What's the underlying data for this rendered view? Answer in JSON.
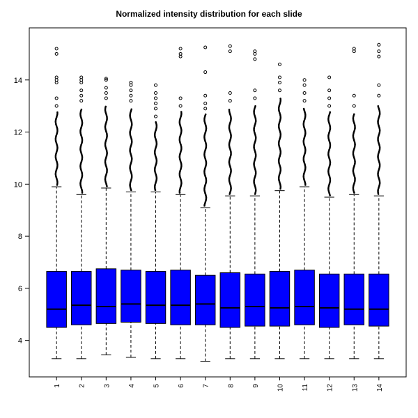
{
  "chart_data": {
    "type": "boxplot",
    "title": "Normalized intensity distribution for each slide",
    "categories": [
      "1",
      "2",
      "3",
      "4",
      "5",
      "6",
      "7",
      "8",
      "9",
      "10",
      "11",
      "12",
      "13",
      "14"
    ],
    "xlabel": "",
    "ylabel": "",
    "ylim": [
      2.6,
      16.0
    ],
    "y_ticks": [
      4,
      6,
      8,
      10,
      12,
      14
    ],
    "grid": false,
    "legend": "none",
    "box_color": "#0000FF",
    "fg": "#000000",
    "background": "#FFFFFF",
    "series": [
      {
        "slide": "1",
        "whisker_low": 3.3,
        "q1": 4.5,
        "median": 5.2,
        "q3": 6.65,
        "whisker_high": 9.9,
        "outliers_dense_to": 12.8,
        "outliers_sparse": [
          13.0,
          13.3,
          13.9,
          14.0,
          14.1,
          15.0,
          15.2
        ]
      },
      {
        "slide": "2",
        "whisker_low": 3.3,
        "q1": 4.6,
        "median": 5.35,
        "q3": 6.65,
        "whisker_high": 9.6,
        "outliers_dense_to": 12.9,
        "outliers_sparse": [
          13.2,
          13.4,
          13.6,
          13.9,
          14.0,
          14.1
        ]
      },
      {
        "slide": "3",
        "whisker_low": 3.45,
        "q1": 4.65,
        "median": 5.3,
        "q3": 6.75,
        "whisker_high": 9.85,
        "outliers_dense_to": 13.0,
        "outliers_sparse": [
          13.3,
          13.5,
          13.7,
          14.0,
          14.05
        ]
      },
      {
        "slide": "4",
        "whisker_low": 3.35,
        "q1": 4.7,
        "median": 5.4,
        "q3": 6.7,
        "whisker_high": 9.7,
        "outliers_dense_to": 12.9,
        "outliers_sparse": [
          13.2,
          13.4,
          13.6,
          13.8,
          13.9
        ]
      },
      {
        "slide": "5",
        "whisker_low": 3.3,
        "q1": 4.65,
        "median": 5.35,
        "q3": 6.65,
        "whisker_high": 9.7,
        "outliers_dense_to": 12.4,
        "outliers_sparse": [
          12.6,
          12.9,
          13.1,
          13.3,
          13.5,
          13.8
        ]
      },
      {
        "slide": "6",
        "whisker_low": 3.3,
        "q1": 4.6,
        "median": 5.35,
        "q3": 6.7,
        "whisker_high": 9.6,
        "outliers_dense_to": 12.8,
        "outliers_sparse": [
          13.0,
          13.3,
          14.9,
          15.0,
          15.2
        ]
      },
      {
        "slide": "7",
        "whisker_low": 3.2,
        "q1": 4.6,
        "median": 5.4,
        "q3": 6.5,
        "whisker_high": 9.1,
        "outliers_dense_to": 12.7,
        "outliers_sparse": [
          12.9,
          13.1,
          13.4,
          14.3,
          15.25
        ]
      },
      {
        "slide": "8",
        "whisker_low": 3.3,
        "q1": 4.5,
        "median": 5.25,
        "q3": 6.6,
        "whisker_high": 9.55,
        "outliers_dense_to": 12.9,
        "outliers_sparse": [
          13.2,
          13.5,
          15.1,
          15.3
        ]
      },
      {
        "slide": "9",
        "whisker_low": 3.3,
        "q1": 4.55,
        "median": 5.3,
        "q3": 6.55,
        "whisker_high": 9.55,
        "outliers_dense_to": 13.0,
        "outliers_sparse": [
          13.3,
          13.6,
          14.8,
          15.0,
          15.1
        ]
      },
      {
        "slide": "10",
        "whisker_low": 3.3,
        "q1": 4.55,
        "median": 5.25,
        "q3": 6.65,
        "whisker_high": 9.75,
        "outliers_dense_to": 13.3,
        "outliers_sparse": [
          13.6,
          13.9,
          14.1,
          14.6
        ]
      },
      {
        "slide": "11",
        "whisker_low": 3.3,
        "q1": 4.6,
        "median": 5.3,
        "q3": 6.7,
        "whisker_high": 9.9,
        "outliers_dense_to": 12.9,
        "outliers_sparse": [
          13.2,
          13.5,
          13.8,
          14.0
        ]
      },
      {
        "slide": "12",
        "whisker_low": 3.3,
        "q1": 4.5,
        "median": 5.25,
        "q3": 6.55,
        "whisker_high": 9.5,
        "outliers_dense_to": 12.8,
        "outliers_sparse": [
          13.0,
          13.3,
          13.6,
          14.1
        ]
      },
      {
        "slide": "13",
        "whisker_low": 3.3,
        "q1": 4.6,
        "median": 5.2,
        "q3": 6.55,
        "whisker_high": 9.6,
        "outliers_dense_to": 12.7,
        "outliers_sparse": [
          13.0,
          13.4,
          15.1,
          15.2
        ]
      },
      {
        "slide": "14",
        "whisker_low": 3.3,
        "q1": 4.55,
        "median": 5.2,
        "q3": 6.55,
        "whisker_high": 9.55,
        "outliers_dense_to": 13.0,
        "outliers_sparse": [
          13.4,
          13.8,
          14.9,
          15.1,
          15.35
        ]
      }
    ]
  }
}
